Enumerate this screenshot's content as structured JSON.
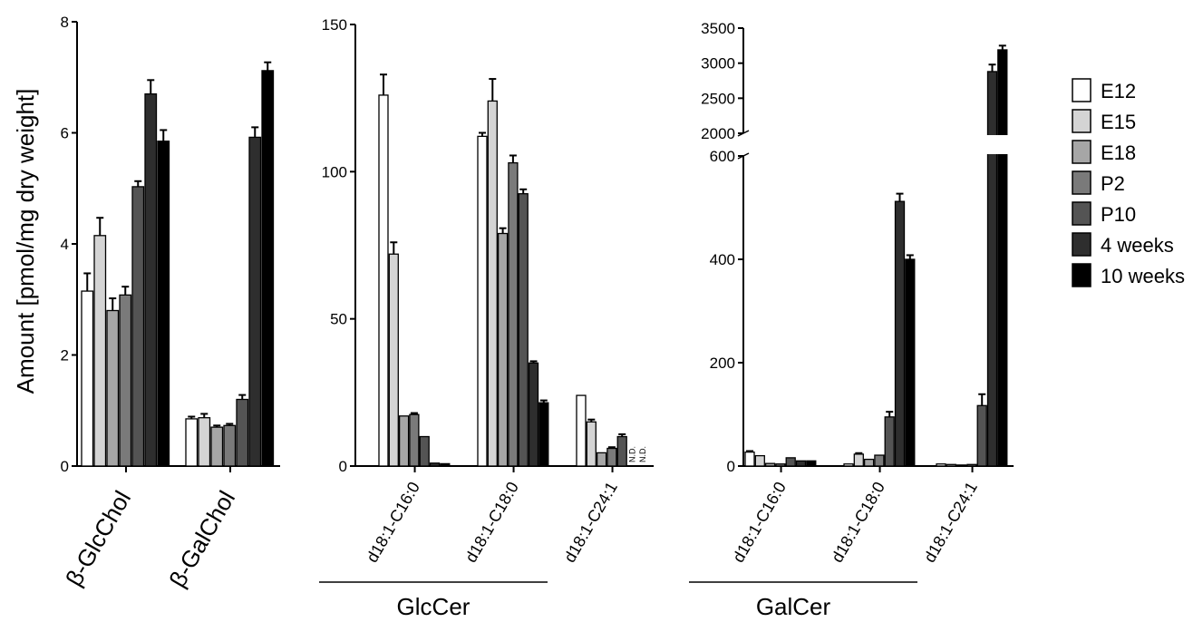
{
  "y_axis_label": "Amount [pmol/mg dry weight]",
  "legend": {
    "entries": [
      {
        "label": "E12",
        "color": "#ffffff"
      },
      {
        "label": "E15",
        "color": "#d4d4d4"
      },
      {
        "label": "E18",
        "color": "#a6a6a6"
      },
      {
        "label": "P2",
        "color": "#7a7a7a"
      },
      {
        "label": "P10",
        "color": "#545454"
      },
      {
        "label": "4 weeks",
        "color": "#2e2e2e"
      },
      {
        "label": "10 weeks",
        "color": "#000000"
      }
    ]
  },
  "chart_data": [
    {
      "type": "bar",
      "categories": [
        "β-GlcChol",
        "β-GalChol"
      ],
      "ylim": [
        0,
        8
      ],
      "yticks": [
        0,
        2,
        4,
        6,
        8
      ],
      "ylabel": "Amount [pmol/mg dry weight]",
      "series": [
        {
          "name": "E12",
          "values": [
            3.15,
            0.85
          ],
          "errors": [
            0.32,
            0.04
          ]
        },
        {
          "name": "E15",
          "values": [
            4.15,
            0.87
          ],
          "errors": [
            0.32,
            0.07
          ]
        },
        {
          "name": "E18",
          "values": [
            2.8,
            0.7
          ],
          "errors": [
            0.22,
            0.03
          ]
        },
        {
          "name": "P2",
          "values": [
            3.08,
            0.73
          ],
          "errors": [
            0.15,
            0.03
          ]
        },
        {
          "name": "P10",
          "values": [
            5.03,
            1.2
          ],
          "errors": [
            0.1,
            0.08
          ]
        },
        {
          "name": "4 weeks",
          "values": [
            6.7,
            5.92
          ],
          "errors": [
            0.25,
            0.18
          ]
        },
        {
          "name": "10 weeks",
          "values": [
            5.85,
            7.12
          ],
          "errors": [
            0.2,
            0.15
          ]
        }
      ]
    },
    {
      "type": "bar",
      "categories": [
        "d18:1-C16:0",
        "d18:1-C18:0",
        "d18:1-C24:1"
      ],
      "group_label": "GlcCer",
      "ylim": [
        0,
        150
      ],
      "yticks": [
        0,
        50,
        100,
        150
      ],
      "annotations": [
        "N.D.",
        "N.D."
      ],
      "series": [
        {
          "name": "E12",
          "values": [
            126,
            112,
            24
          ],
          "errors": [
            7,
            1.2,
            0.3
          ]
        },
        {
          "name": "E15",
          "values": [
            72,
            124,
            15
          ],
          "errors": [
            4,
            7.5,
            0.8
          ]
        },
        {
          "name": "E18",
          "values": [
            17,
            79,
            4.5
          ],
          "errors": [
            0.3,
            1.8,
            0.3
          ]
        },
        {
          "name": "P2",
          "values": [
            17.5,
            103,
            6
          ],
          "errors": [
            0.5,
            2.5,
            0.4
          ]
        },
        {
          "name": "P10",
          "values": [
            10,
            92.5,
            10
          ],
          "errors": [
            0.3,
            1.5,
            0.8
          ]
        },
        {
          "name": "4 weeks",
          "values": [
            1,
            35,
            null
          ],
          "errors": [
            0.2,
            0.6,
            0
          ]
        },
        {
          "name": "10 weeks",
          "values": [
            0.8,
            21.5,
            null
          ],
          "errors": [
            0.1,
            0.8,
            0
          ]
        }
      ]
    },
    {
      "type": "bar",
      "categories": [
        "d18:1-C16:0",
        "d18:1-C18:0",
        "d18:1-C24:1"
      ],
      "group_label": "GalCer",
      "ylim": [
        0,
        3500
      ],
      "axis_break": [
        600,
        2000
      ],
      "yticks_lower": [
        0,
        200,
        400,
        600
      ],
      "yticks_upper": [
        2000,
        2500,
        3000,
        3500
      ],
      "series": [
        {
          "name": "E12",
          "values": [
            27,
            4,
            4
          ],
          "errors": [
            2,
            0.5,
            0.5
          ]
        },
        {
          "name": "E15",
          "values": [
            20,
            23,
            3
          ],
          "errors": [
            1.5,
            2,
            0.5
          ]
        },
        {
          "name": "E18",
          "values": [
            5,
            13,
            2
          ],
          "errors": [
            0.5,
            1,
            0.3
          ]
        },
        {
          "name": "P2",
          "values": [
            4,
            21,
            3
          ],
          "errors": [
            0.5,
            1.5,
            0.3
          ]
        },
        {
          "name": "P10",
          "values": [
            16,
            95,
            117
          ],
          "errors": [
            1,
            10,
            22
          ]
        },
        {
          "name": "4 weeks",
          "values": [
            10,
            512,
            2880
          ],
          "errors": [
            1,
            15,
            100
          ]
        },
        {
          "name": "10 weeks",
          "values": [
            10,
            400,
            3190
          ],
          "errors": [
            1,
            8,
            60
          ]
        }
      ]
    }
  ]
}
